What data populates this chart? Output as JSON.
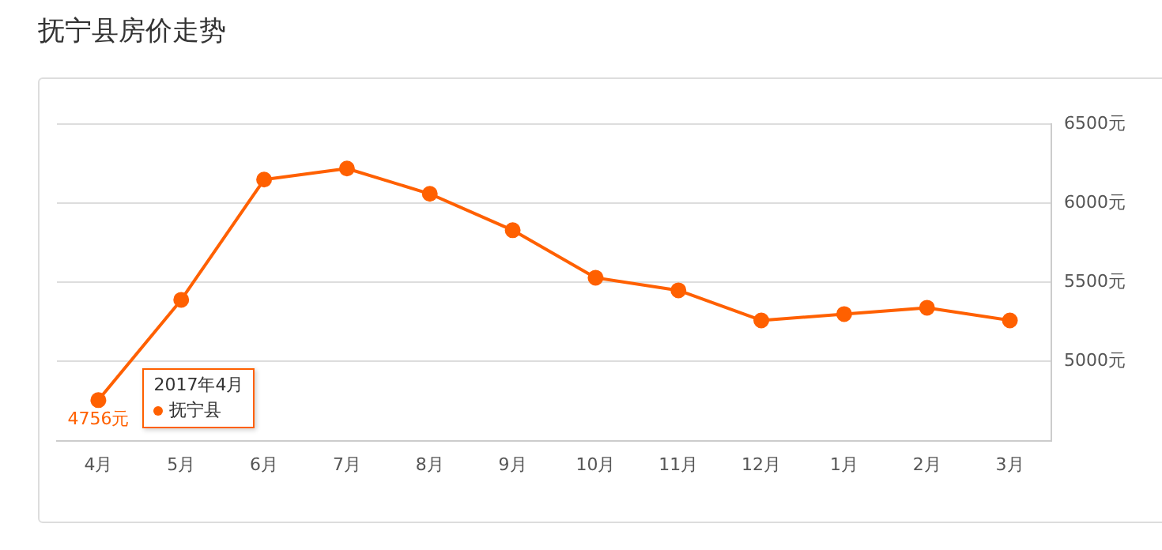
{
  "chart_data": {
    "type": "line",
    "title": "抚宁县房价走势",
    "categories": [
      "4月",
      "5月",
      "6月",
      "7月",
      "8月",
      "9月",
      "10月",
      "11月",
      "12月",
      "1月",
      "2月",
      "3月"
    ],
    "series": [
      {
        "name": "抚宁县",
        "color": "#ff6000",
        "values": [
          4756,
          5390,
          6150,
          6220,
          6060,
          5830,
          5530,
          5450,
          5260,
          5300,
          5340,
          5260
        ],
        "value_labels": [
          "4756元",
          null,
          null,
          null,
          null,
          null,
          null,
          null,
          null,
          null,
          null,
          null
        ]
      }
    ],
    "annotations": [
      "2017年4月"
    ],
    "ylim": [
      4500,
      6500
    ],
    "yticks": [
      {
        "value": 5000,
        "label": "5000元"
      },
      {
        "value": 5500,
        "label": "5500元"
      },
      {
        "value": 6000,
        "label": "6000元"
      },
      {
        "value": 6500,
        "label": "6500元"
      }
    ],
    "grid": "y",
    "legend": "bottom left",
    "marker": "circle",
    "line_style": "solid"
  }
}
